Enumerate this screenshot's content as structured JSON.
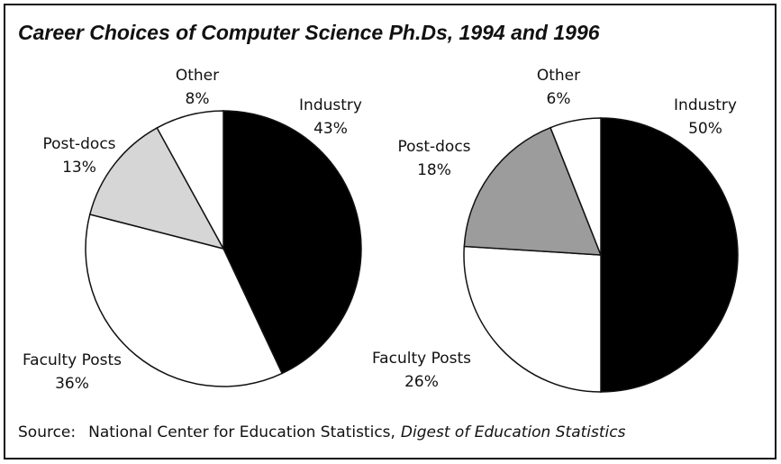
{
  "title": "Career Choices of Computer Science Ph.Ds, 1994 and 1996",
  "source": {
    "label": "Source:",
    "publisher": "National Center for Education Statistics,",
    "publication": "Digest of Education Statistics"
  },
  "chart_data": [
    {
      "type": "pie",
      "categories": [
        "Industry",
        "Faculty Posts",
        "Post-docs",
        "Other"
      ],
      "values": [
        43,
        36,
        13,
        8
      ],
      "value_labels": [
        "43%",
        "36%",
        "13%",
        "8%"
      ],
      "colors": [
        "#000000",
        "#ffffff",
        "#d6d6d6",
        "#ffffff"
      ]
    },
    {
      "type": "pie",
      "categories": [
        "Industry",
        "Faculty Posts",
        "Post-docs",
        "Other"
      ],
      "values": [
        50,
        26,
        18,
        6
      ],
      "value_labels": [
        "50%",
        "26%",
        "18%",
        "6%"
      ],
      "colors": [
        "#000000",
        "#ffffff",
        "#9c9c9c",
        "#ffffff"
      ]
    }
  ]
}
